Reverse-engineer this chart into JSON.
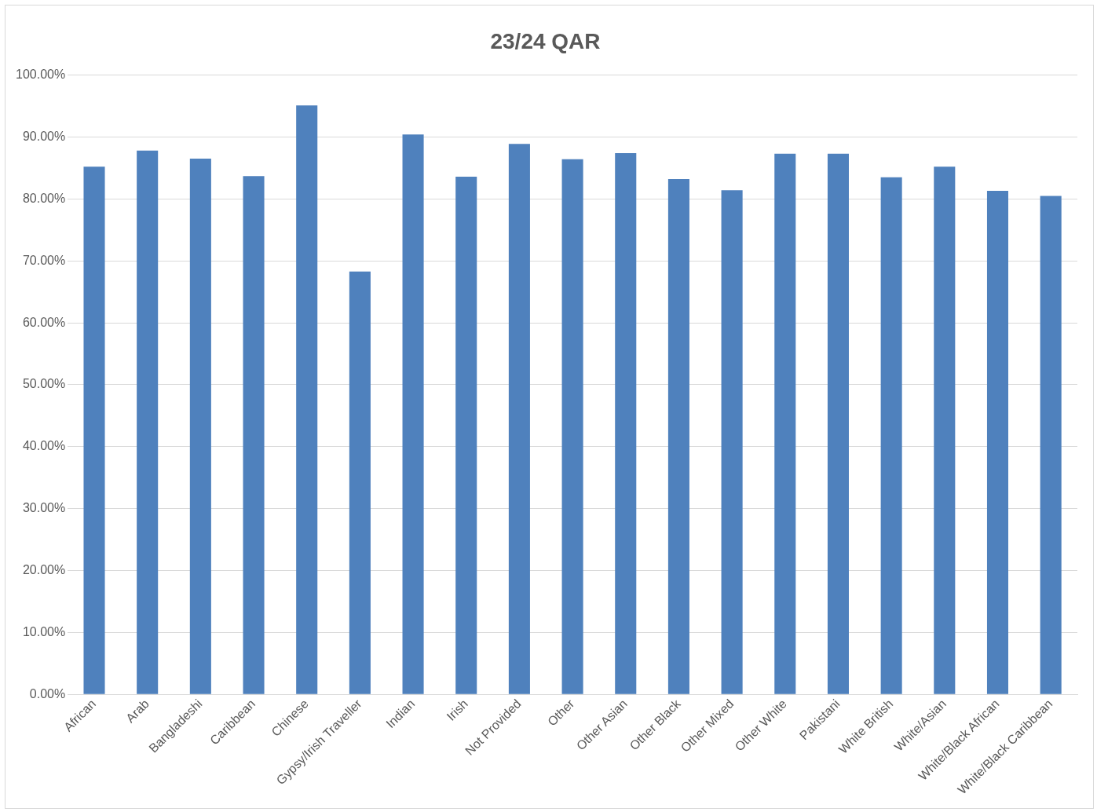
{
  "chart_data": {
    "type": "bar",
    "title": "23/24 QAR",
    "categories": [
      "African",
      "Arab",
      "Bangladeshi",
      "Caribbean",
      "Chinese",
      "Gypsy/Irish Traveller",
      "Indian",
      "Irish",
      "Not Provided",
      "Other",
      "Other Asian",
      "Other Black",
      "Other Mixed",
      "Other White",
      "Pakistani",
      "White British",
      "White/Asian",
      "White/Black African",
      "White/Black Caribbean"
    ],
    "values": [
      85.2,
      87.8,
      86.5,
      83.7,
      95.1,
      68.3,
      90.4,
      83.6,
      88.9,
      86.4,
      87.4,
      83.2,
      81.4,
      87.3,
      87.3,
      83.5,
      85.2,
      81.3,
      80.5
    ],
    "color": "#4f81bd",
    "ylim": [
      0,
      100
    ],
    "yticks": [
      {
        "value": 0,
        "label": "0.00%"
      },
      {
        "value": 10,
        "label": "10.00%"
      },
      {
        "value": 20,
        "label": "20.00%"
      },
      {
        "value": 30,
        "label": "30.00%"
      },
      {
        "value": 40,
        "label": "40.00%"
      },
      {
        "value": 50,
        "label": "50.00%"
      },
      {
        "value": 60,
        "label": "60.00%"
      },
      {
        "value": 70,
        "label": "70.00%"
      },
      {
        "value": 80,
        "label": "80.00%"
      },
      {
        "value": 90,
        "label": "90.00%"
      },
      {
        "value": 100,
        "label": "100.00%"
      }
    ],
    "grid": "y",
    "legend": false
  }
}
